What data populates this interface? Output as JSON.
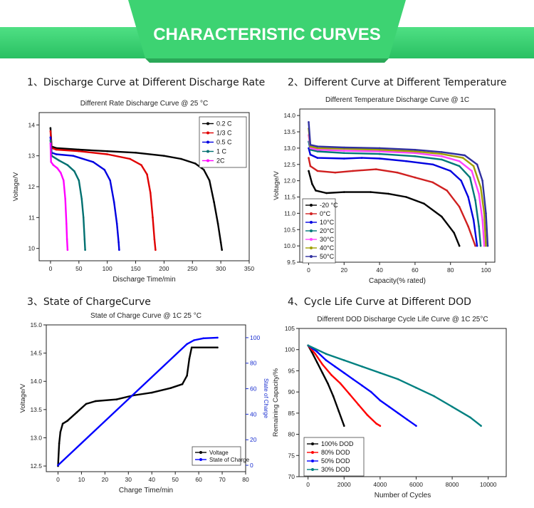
{
  "header": {
    "title": "CHARACTERISTIC CURVES",
    "accent": "#3ccf6e",
    "accent_dark": "#2bb35a",
    "band": "#3fd474"
  },
  "sections": [
    {
      "label": "1、Discharge Curve at Different Discharge Rate"
    },
    {
      "label": "2、Different Curve at Different Temperature"
    },
    {
      "label": "3、State of ChargeCurve"
    },
    {
      "label": "4、Cycle Life Curve at Different DOD"
    }
  ],
  "chart_data": [
    {
      "type": "line",
      "title": "Different Rate Discharge Curve @ 25 °C",
      "xlabel": "Discharge Time/min",
      "ylabel": "Voltage/V",
      "xlim": [
        -20,
        350
      ],
      "ylim": [
        9.6,
        14.4
      ],
      "xticks": [
        0,
        50,
        100,
        150,
        200,
        250,
        300,
        350
      ],
      "yticks": [
        10,
        11,
        12,
        13,
        14
      ],
      "legend_position": "top-right",
      "series": [
        {
          "name": "0.2 C",
          "color": "#000000",
          "points": [
            [
              0,
              13.9
            ],
            [
              2,
              13.3
            ],
            [
              10,
              13.25
            ],
            [
              50,
              13.2
            ],
            [
              100,
              13.15
            ],
            [
              150,
              13.1
            ],
            [
              200,
              13.0
            ],
            [
              230,
              12.9
            ],
            [
              255,
              12.75
            ],
            [
              270,
              12.55
            ],
            [
              280,
              12.2
            ],
            [
              288,
              11.5
            ],
            [
              295,
              10.8
            ],
            [
              300,
              10.2
            ],
            [
              302,
              9.95
            ]
          ]
        },
        {
          "name": "1/3 C",
          "color": "#e00000",
          "points": [
            [
              0,
              13.8
            ],
            [
              2,
              13.25
            ],
            [
              10,
              13.2
            ],
            [
              50,
              13.15
            ],
            [
              100,
              13.05
            ],
            [
              140,
              12.9
            ],
            [
              160,
              12.7
            ],
            [
              170,
              12.4
            ],
            [
              176,
              11.8
            ],
            [
              180,
              11.0
            ],
            [
              183,
              10.3
            ],
            [
              185,
              9.95
            ]
          ]
        },
        {
          "name": "0.5 C",
          "color": "#0000e0",
          "points": [
            [
              0,
              13.6
            ],
            [
              2,
              13.1
            ],
            [
              10,
              13.05
            ],
            [
              40,
              13.0
            ],
            [
              75,
              12.8
            ],
            [
              95,
              12.55
            ],
            [
              105,
              12.2
            ],
            [
              112,
              11.5
            ],
            [
              117,
              10.8
            ],
            [
              120,
              10.2
            ],
            [
              121,
              9.95
            ]
          ]
        },
        {
          "name": "1 C",
          "color": "#007070",
          "points": [
            [
              0,
              13.5
            ],
            [
              2,
              13.0
            ],
            [
              15,
              12.85
            ],
            [
              30,
              12.7
            ],
            [
              42,
              12.5
            ],
            [
              50,
              12.2
            ],
            [
              55,
              11.6
            ],
            [
              58,
              11.0
            ],
            [
              60,
              10.3
            ],
            [
              61,
              9.95
            ]
          ]
        },
        {
          "name": "2C",
          "color": "#ff00ff",
          "points": [
            [
              0,
              13.4
            ],
            [
              1,
              12.8
            ],
            [
              5,
              12.7
            ],
            [
              12,
              12.6
            ],
            [
              18,
              12.45
            ],
            [
              23,
              12.2
            ],
            [
              26,
              11.6
            ],
            [
              28,
              10.8
            ],
            [
              29,
              10.3
            ],
            [
              30,
              9.95
            ]
          ]
        }
      ]
    },
    {
      "type": "line",
      "title": "Different Temperature Discharge Curve @ 1C",
      "xlabel": "Capacity(% rated)",
      "ylabel": "Voltage/V",
      "xlim": [
        -5,
        105
      ],
      "ylim": [
        9.5,
        14.2
      ],
      "xticks": [
        0,
        20,
        40,
        60,
        80,
        100
      ],
      "yticks": [
        9.5,
        10.0,
        10.5,
        11.0,
        11.5,
        12.0,
        12.5,
        13.0,
        13.5,
        14.0
      ],
      "legend_position": "bottom-left",
      "series": [
        {
          "name": "-20 °C",
          "color": "#000000",
          "points": [
            [
              0,
              12.3
            ],
            [
              2,
              11.9
            ],
            [
              4,
              11.7
            ],
            [
              10,
              11.62
            ],
            [
              20,
              11.65
            ],
            [
              35,
              11.65
            ],
            [
              45,
              11.6
            ],
            [
              55,
              11.5
            ],
            [
              65,
              11.3
            ],
            [
              75,
              10.9
            ],
            [
              82,
              10.4
            ],
            [
              85,
              10.0
            ]
          ]
        },
        {
          "name": "0°C",
          "color": "#d02020",
          "points": [
            [
              0,
              12.7
            ],
            [
              1,
              12.45
            ],
            [
              5,
              12.3
            ],
            [
              15,
              12.25
            ],
            [
              25,
              12.3
            ],
            [
              38,
              12.35
            ],
            [
              50,
              12.25
            ],
            [
              60,
              12.1
            ],
            [
              70,
              11.95
            ],
            [
              78,
              11.7
            ],
            [
              85,
              11.2
            ],
            [
              90,
              10.6
            ],
            [
              94,
              10.0
            ]
          ]
        },
        {
          "name": "10°C",
          "color": "#0000e0",
          "points": [
            [
              0,
              13.0
            ],
            [
              1,
              12.8
            ],
            [
              5,
              12.7
            ],
            [
              20,
              12.68
            ],
            [
              30,
              12.7
            ],
            [
              40,
              12.68
            ],
            [
              55,
              12.6
            ],
            [
              70,
              12.5
            ],
            [
              80,
              12.3
            ],
            [
              86,
              12.0
            ],
            [
              90,
              11.5
            ],
            [
              93,
              10.8
            ],
            [
              95,
              10.0
            ]
          ]
        },
        {
          "name": "20°C",
          "color": "#007878",
          "points": [
            [
              0,
              13.2
            ],
            [
              1,
              12.95
            ],
            [
              5,
              12.9
            ],
            [
              20,
              12.85
            ],
            [
              40,
              12.82
            ],
            [
              60,
              12.75
            ],
            [
              75,
              12.65
            ],
            [
              85,
              12.45
            ],
            [
              91,
              12.1
            ],
            [
              94,
              11.4
            ],
            [
              96,
              10.6
            ],
            [
              97,
              10.0
            ]
          ]
        },
        {
          "name": "30°C",
          "color": "#ff44ff",
          "points": [
            [
              0,
              13.4
            ],
            [
              1,
              13.0
            ],
            [
              5,
              12.95
            ],
            [
              20,
              12.92
            ],
            [
              40,
              12.9
            ],
            [
              60,
              12.85
            ],
            [
              75,
              12.75
            ],
            [
              85,
              12.6
            ],
            [
              92,
              12.3
            ],
            [
              96,
              11.6
            ],
            [
              98,
              10.8
            ],
            [
              99,
              10.0
            ]
          ]
        },
        {
          "name": "40°C",
          "color": "#a0a000",
          "points": [
            [
              0,
              13.6
            ],
            [
              1,
              13.05
            ],
            [
              5,
              13.0
            ],
            [
              20,
              12.98
            ],
            [
              40,
              12.95
            ],
            [
              60,
              12.9
            ],
            [
              75,
              12.82
            ],
            [
              87,
              12.7
            ],
            [
              93,
              12.45
            ],
            [
              97,
              11.8
            ],
            [
              99,
              11.0
            ],
            [
              100,
              10.0
            ]
          ]
        },
        {
          "name": "50°C",
          "color": "#3030a0",
          "points": [
            [
              0,
              13.8
            ],
            [
              1,
              13.1
            ],
            [
              5,
              13.05
            ],
            [
              20,
              13.02
            ],
            [
              40,
              13.0
            ],
            [
              60,
              12.95
            ],
            [
              75,
              12.88
            ],
            [
              88,
              12.78
            ],
            [
              95,
              12.5
            ],
            [
              98,
              12.0
            ],
            [
              100,
              11.0
            ],
            [
              101,
              10.0
            ]
          ]
        }
      ]
    },
    {
      "type": "line",
      "title": "State of Charge Curve @ 1C  25 °C",
      "xlabel": "Charge Time/min",
      "ylabel": "Voltage/V",
      "y2label": "State of Charge",
      "xlim": [
        -5,
        80
      ],
      "ylim": [
        12.4,
        15.0
      ],
      "y2lim": [
        -5,
        110
      ],
      "xticks": [
        0,
        10,
        20,
        30,
        40,
        50,
        60,
        70,
        80
      ],
      "yticks": [
        12.5,
        13.0,
        13.5,
        14.0,
        14.5,
        15.0
      ],
      "y2ticks": [
        0,
        20,
        40,
        60,
        80,
        100
      ],
      "legend_position": "bottom-right",
      "series": [
        {
          "name": "Voltage",
          "color": "#000000",
          "axis": "left",
          "points": [
            [
              0,
              12.5
            ],
            [
              0.5,
              12.9
            ],
            [
              1,
              13.1
            ],
            [
              2,
              13.25
            ],
            [
              4,
              13.3
            ],
            [
              8,
              13.45
            ],
            [
              12,
              13.6
            ],
            [
              16,
              13.65
            ],
            [
              25,
              13.68
            ],
            [
              32,
              13.75
            ],
            [
              40,
              13.8
            ],
            [
              48,
              13.88
            ],
            [
              53,
              13.95
            ],
            [
              55,
              14.1
            ],
            [
              56,
              14.4
            ],
            [
              57,
              14.6
            ],
            [
              68,
              14.6
            ]
          ]
        },
        {
          "name": "State of Charge",
          "color": "#0000ff",
          "axis": "right",
          "points": [
            [
              0,
              0
            ],
            [
              55,
              95
            ],
            [
              58,
              98
            ],
            [
              62,
              99.5
            ],
            [
              68,
              100
            ]
          ]
        }
      ]
    },
    {
      "type": "line",
      "title": "Different DOD Discharge Cycle Life Curve @ 1C 25°C",
      "xlabel": "Number of Cycles",
      "ylabel": "Remaining Capacity/%",
      "xlim": [
        -500,
        11000
      ],
      "ylim": [
        70,
        105
      ],
      "xticks": [
        0,
        2000,
        4000,
        6000,
        8000,
        10000
      ],
      "yticks": [
        70,
        75,
        80,
        85,
        90,
        95,
        100,
        105
      ],
      "legend_position": "bottom-left",
      "series": [
        {
          "name": "100% DOD",
          "color": "#000000",
          "points": [
            [
              0,
              101
            ],
            [
              200,
              99.5
            ],
            [
              500,
              97
            ],
            [
              800,
              94.5
            ],
            [
              1100,
              92
            ],
            [
              1400,
              89
            ],
            [
              1700,
              85.5
            ],
            [
              2000,
              82
            ]
          ]
        },
        {
          "name": "80% DOD",
          "color": "#ff0000",
          "points": [
            [
              0,
              101
            ],
            [
              400,
              99
            ],
            [
              800,
              96.5
            ],
            [
              1300,
              94
            ],
            [
              1800,
              92
            ],
            [
              2300,
              89.5
            ],
            [
              2800,
              87
            ],
            [
              3300,
              84.5
            ],
            [
              3800,
              82.5
            ],
            [
              4000,
              82
            ]
          ]
        },
        {
          "name": "50% DOD",
          "color": "#0000ff",
          "points": [
            [
              0,
              101
            ],
            [
              500,
              99.5
            ],
            [
              1000,
              97.5
            ],
            [
              1500,
              96
            ],
            [
              2000,
              94.5
            ],
            [
              2500,
              93
            ],
            [
              3000,
              91.5
            ],
            [
              3500,
              90
            ],
            [
              4000,
              88
            ],
            [
              4500,
              86.5
            ],
            [
              5000,
              85
            ],
            [
              5500,
              83.5
            ],
            [
              6000,
              82
            ]
          ]
        },
        {
          "name": "30% DOD",
          "color": "#008080",
          "points": [
            [
              0,
              101
            ],
            [
              1000,
              99
            ],
            [
              2000,
              97.5
            ],
            [
              3000,
              96
            ],
            [
              4000,
              94.5
            ],
            [
              5000,
              93
            ],
            [
              6000,
              91
            ],
            [
              7000,
              89
            ],
            [
              8000,
              86.5
            ],
            [
              9000,
              84
            ],
            [
              9600,
              82
            ]
          ]
        }
      ]
    }
  ]
}
